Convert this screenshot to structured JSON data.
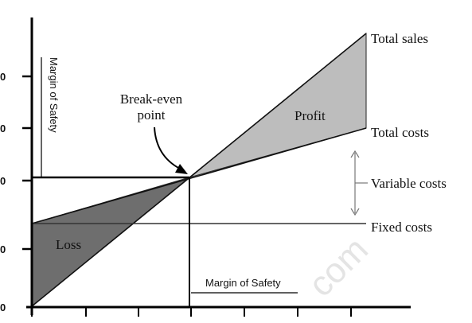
{
  "diagram": {
    "labels": {
      "total_sales": "Total sales",
      "total_costs": "Total costs",
      "variable_costs": "Variable costs",
      "fixed_costs": "Fixed costs",
      "profit": "Profit",
      "loss": "Loss",
      "break_even_line1": "Break-even",
      "break_even_line2": "point",
      "margin_of_safety_vertical": "Margin of Safety",
      "margin_of_safety_horizontal": "Margin of Safety"
    },
    "y_tick_labels": [
      "0",
      "0",
      "0",
      "0",
      "0"
    ],
    "watermark": "com"
  },
  "colors": {
    "profit_fill": "#bdbdbd",
    "loss_fill": "#6e6e6e",
    "line": "#111111"
  }
}
